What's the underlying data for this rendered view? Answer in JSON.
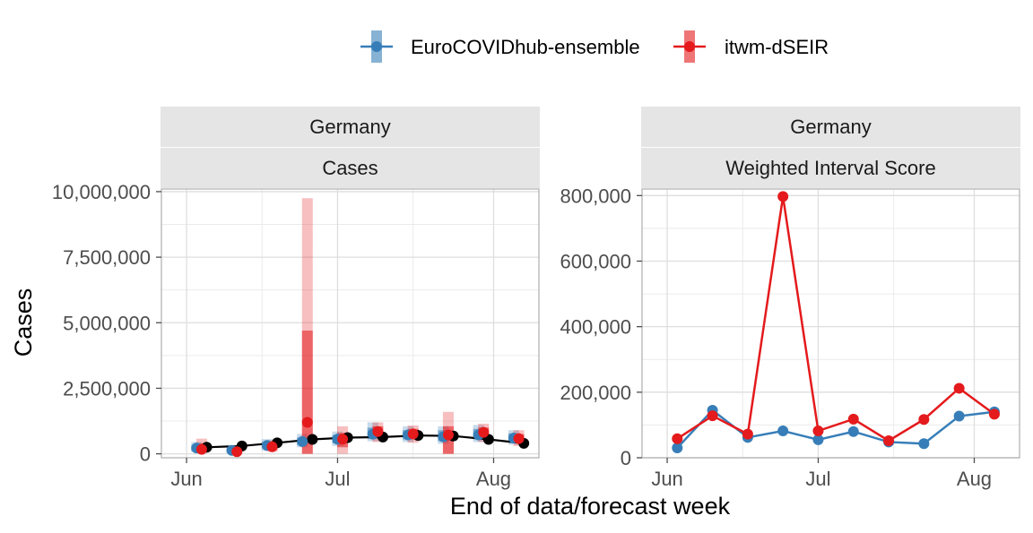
{
  "legend": {
    "placement": "top",
    "items": [
      {
        "label": "EuroCOVIDhub-ensemble",
        "color": "#377EB8"
      },
      {
        "label": "itwm-dSEIR",
        "color": "#E41A1C"
      }
    ]
  },
  "observed_color": "#000000",
  "xlabel": "End of data/forecast week",
  "ylabel": "Cases",
  "panels": [
    {
      "strip_top": "Germany",
      "strip_bottom": "Cases"
    },
    {
      "strip_top": "Germany",
      "strip_bottom": "Weighted Interval Score"
    }
  ],
  "chart_data": [
    {
      "type": "line",
      "panel": "Germany / Cases",
      "x_ticks": [
        "Jun",
        "Jul",
        "Aug"
      ],
      "x_tick_dates": [
        "2021-06-01",
        "2021-07-01",
        "2021-08-01"
      ],
      "x_range": [
        "2021-05-27",
        "2021-08-10"
      ],
      "ylim": [
        -150000,
        10100000
      ],
      "y_ticks": [
        0,
        2500000,
        5000000,
        7500000,
        10000000
      ],
      "y_tick_labels": [
        "0",
        "2,500,000",
        "5,000,000",
        "7,500,000",
        "10,000,000"
      ],
      "grid": true,
      "observed": {
        "dates": [
          "2021-06-05",
          "2021-06-12",
          "2021-06-19",
          "2021-06-26",
          "2021-07-03",
          "2021-07-10",
          "2021-07-17",
          "2021-07-24",
          "2021-07-31",
          "2021-08-07"
        ],
        "values": [
          250000,
          300000,
          420000,
          550000,
          620000,
          640000,
          700000,
          680000,
          550000,
          400000
        ]
      },
      "series": [
        {
          "name": "EuroCOVIDhub-ensemble",
          "dates": [
            "2021-06-03",
            "2021-06-10",
            "2021-06-17",
            "2021-06-24",
            "2021-07-01",
            "2021-07-08",
            "2021-07-15",
            "2021-07-22",
            "2021-07-29",
            "2021-08-05"
          ],
          "values": [
            220000,
            130000,
            320000,
            470000,
            560000,
            750000,
            720000,
            650000,
            720000,
            600000
          ],
          "inner_intervals": [
            [
              120000,
              320000
            ],
            [
              60000,
              210000
            ],
            [
              200000,
              450000
            ],
            [
              330000,
              620000
            ],
            [
              400000,
              720000
            ],
            [
              580000,
              1000000
            ],
            [
              550000,
              900000
            ],
            [
              480000,
              900000
            ],
            [
              560000,
              950000
            ],
            [
              450000,
              780000
            ]
          ],
          "outer_intervals": [
            [
              60000,
              450000
            ],
            [
              20000,
              300000
            ],
            [
              120000,
              560000
            ],
            [
              250000,
              760000
            ],
            [
              300000,
              850000
            ],
            [
              480000,
              1200000
            ],
            [
              450000,
              1050000
            ],
            [
              380000,
              1050000
            ],
            [
              450000,
              1100000
            ],
            [
              350000,
              900000
            ]
          ]
        },
        {
          "name": "itwm-dSEIR",
          "dates": [
            "2021-06-04",
            "2021-06-11",
            "2021-06-18",
            "2021-06-25",
            "2021-07-02",
            "2021-07-09",
            "2021-07-16",
            "2021-07-23",
            "2021-07-30",
            "2021-08-06"
          ],
          "values": [
            170000,
            80000,
            270000,
            1200000,
            560000,
            850000,
            760000,
            720000,
            820000,
            580000
          ],
          "inner_intervals": [
            [
              80000,
              400000
            ],
            [
              30000,
              180000
            ],
            [
              150000,
              400000
            ],
            [
              0,
              4700000
            ],
            [
              250000,
              800000
            ],
            [
              600000,
              1050000
            ],
            [
              550000,
              950000
            ],
            [
              0,
              1050000
            ],
            [
              600000,
              1000000
            ],
            [
              400000,
              750000
            ]
          ],
          "outer_intervals": [
            [
              30000,
              580000
            ],
            [
              10000,
              260000
            ],
            [
              80000,
              520000
            ],
            [
              0,
              9750000
            ],
            [
              0,
              1050000
            ],
            [
              450000,
              1200000
            ],
            [
              420000,
              1080000
            ],
            [
              0,
              1600000
            ],
            [
              450000,
              1150000
            ],
            [
              300000,
              900000
            ]
          ]
        }
      ]
    },
    {
      "type": "line",
      "panel": "Germany / Weighted Interval Score",
      "x_ticks": [
        "Jun",
        "Jul",
        "Aug"
      ],
      "x_tick_dates": [
        "2021-06-01",
        "2021-07-01",
        "2021-08-01"
      ],
      "x_range": [
        "2021-05-27",
        "2021-08-10"
      ],
      "ylim": [
        0,
        820000
      ],
      "y_ticks": [
        0,
        200000,
        400000,
        600000,
        800000
      ],
      "y_tick_labels": [
        "0",
        "200,000",
        "400,000",
        "600,000",
        "800,000"
      ],
      "grid": true,
      "series": [
        {
          "name": "EuroCOVIDhub-ensemble",
          "dates": [
            "2021-06-03",
            "2021-06-10",
            "2021-06-17",
            "2021-06-24",
            "2021-07-01",
            "2021-07-08",
            "2021-07-15",
            "2021-07-22",
            "2021-07-29",
            "2021-08-05"
          ],
          "values": [
            30000,
            145000,
            62000,
            82000,
            55000,
            80000,
            48000,
            43000,
            127000,
            140000
          ]
        },
        {
          "name": "itwm-dSEIR",
          "dates": [
            "2021-06-03",
            "2021-06-10",
            "2021-06-17",
            "2021-06-24",
            "2021-07-01",
            "2021-07-08",
            "2021-07-15",
            "2021-07-22",
            "2021-07-29",
            "2021-08-05"
          ],
          "values": [
            58000,
            128000,
            72000,
            797000,
            82000,
            118000,
            52000,
            117000,
            212000,
            133000
          ]
        }
      ]
    }
  ]
}
